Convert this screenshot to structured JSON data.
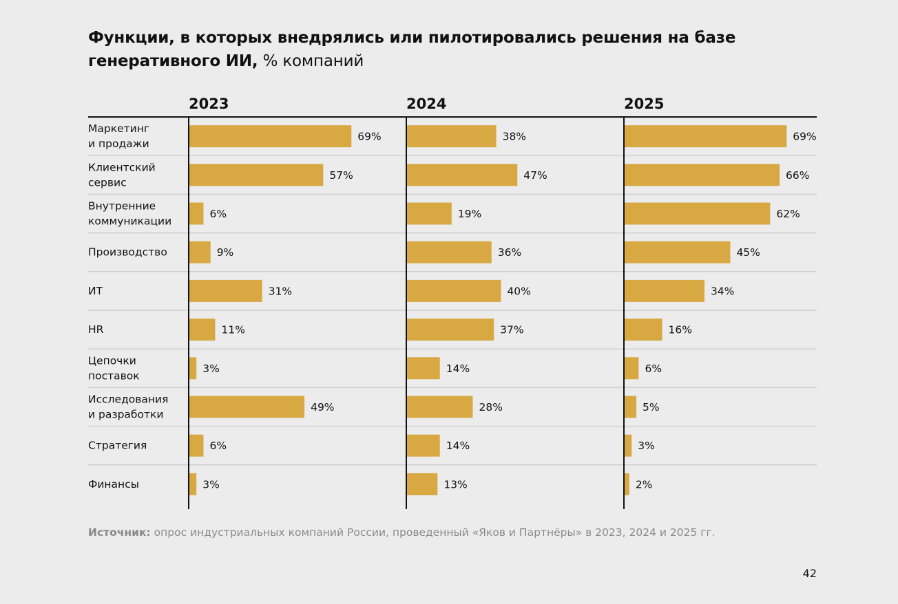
{
  "title": {
    "main": "Функции, в которых внедрялись или пилотировались решения на базе генеративного ИИ,",
    "unit": " % компаний"
  },
  "chart_data": {
    "type": "bar",
    "orientation": "horizontal",
    "layout": "small-multiples",
    "title": "Функции, в которых внедрялись или пилотировались решения на базе генеративного ИИ, % компаний",
    "xlabel": "",
    "ylabel": "",
    "unit": "%",
    "xlim": [
      0,
      100
    ],
    "grid": false,
    "bar_color": "#d8a943",
    "categories": [
      [
        "Маркетинг",
        "и продажи"
      ],
      [
        "Клиентский",
        "сервис"
      ],
      [
        "Внутренние",
        "коммуникации"
      ],
      [
        "Производство"
      ],
      [
        "ИТ"
      ],
      [
        "HR"
      ],
      [
        "Цепочки",
        "поставок"
      ],
      [
        "Исследования",
        "и разработки"
      ],
      [
        "Стратегия"
      ],
      [
        "Финансы"
      ]
    ],
    "series": [
      {
        "name": "2023",
        "values": [
          69,
          57,
          6,
          9,
          31,
          11,
          3,
          49,
          6,
          3
        ]
      },
      {
        "name": "2024",
        "values": [
          38,
          47,
          19,
          36,
          40,
          37,
          14,
          28,
          14,
          13
        ]
      },
      {
        "name": "2025",
        "values": [
          69,
          66,
          62,
          45,
          34,
          16,
          6,
          5,
          3,
          2
        ]
      }
    ]
  },
  "source": {
    "label": "Источник:",
    "text": " опрос индустриальных компаний России, проведенный «Яков и Партнёры» в 2023, 2024 и 2025 гг."
  },
  "page_number": "42"
}
